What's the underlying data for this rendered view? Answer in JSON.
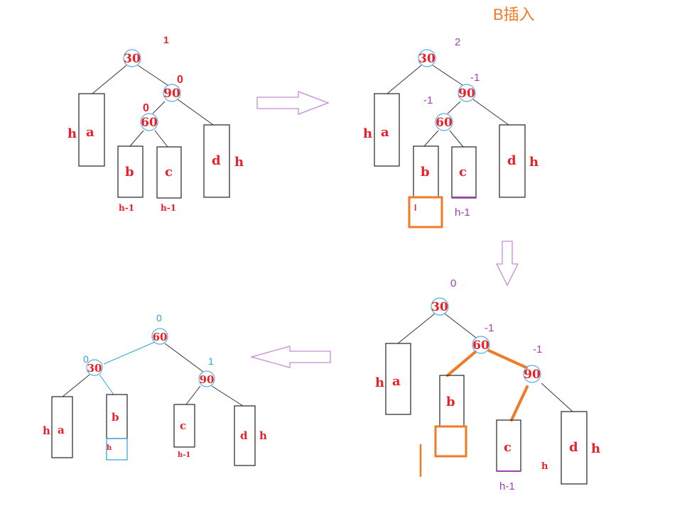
{
  "caption": "B插入",
  "colors": {
    "red": "#e8202a",
    "purple": "#a23fb5",
    "blue": "#2f9fd8",
    "orange": "#f07a26",
    "arrow": "#c88ad8",
    "black": "#222222"
  },
  "panels": {
    "p1": {
      "root": "30",
      "root_bf": "1",
      "right": "90",
      "right_bf": "0",
      "mid": "60",
      "mid_bf": "0",
      "a": "a",
      "b": "b",
      "c": "c",
      "d": "d",
      "h_a": "h",
      "h_d": "h",
      "b_h": "h-1",
      "c_h": "h-1"
    },
    "p2": {
      "root": "30",
      "root_bf": "2",
      "right": "90",
      "right_bf": "-1",
      "mid": "60",
      "mid_bf": "-1",
      "a": "a",
      "b": "b",
      "c": "c",
      "d": "d",
      "h_a": "h",
      "h_d": "h",
      "c_h": "h-1",
      "ins": "l"
    },
    "p3": {
      "root": "30",
      "root_bf": "0",
      "mid": "60",
      "mid_bf": "-1",
      "right": "90",
      "right_bf": "-1",
      "a": "a",
      "b": "b",
      "c": "c",
      "d": "d",
      "h_a": "h",
      "h_d": "h",
      "h_c": "h",
      "c_h": "h-1"
    },
    "p4": {
      "root": "60",
      "root_bf": "0",
      "left": "30",
      "left_bf": "0",
      "right": "90",
      "right_bf": "1",
      "a": "a",
      "b": "b",
      "c": "c",
      "d": "d",
      "h_a": "h",
      "h_d": "h",
      "b_h": "h",
      "c_h": "h-1"
    }
  }
}
